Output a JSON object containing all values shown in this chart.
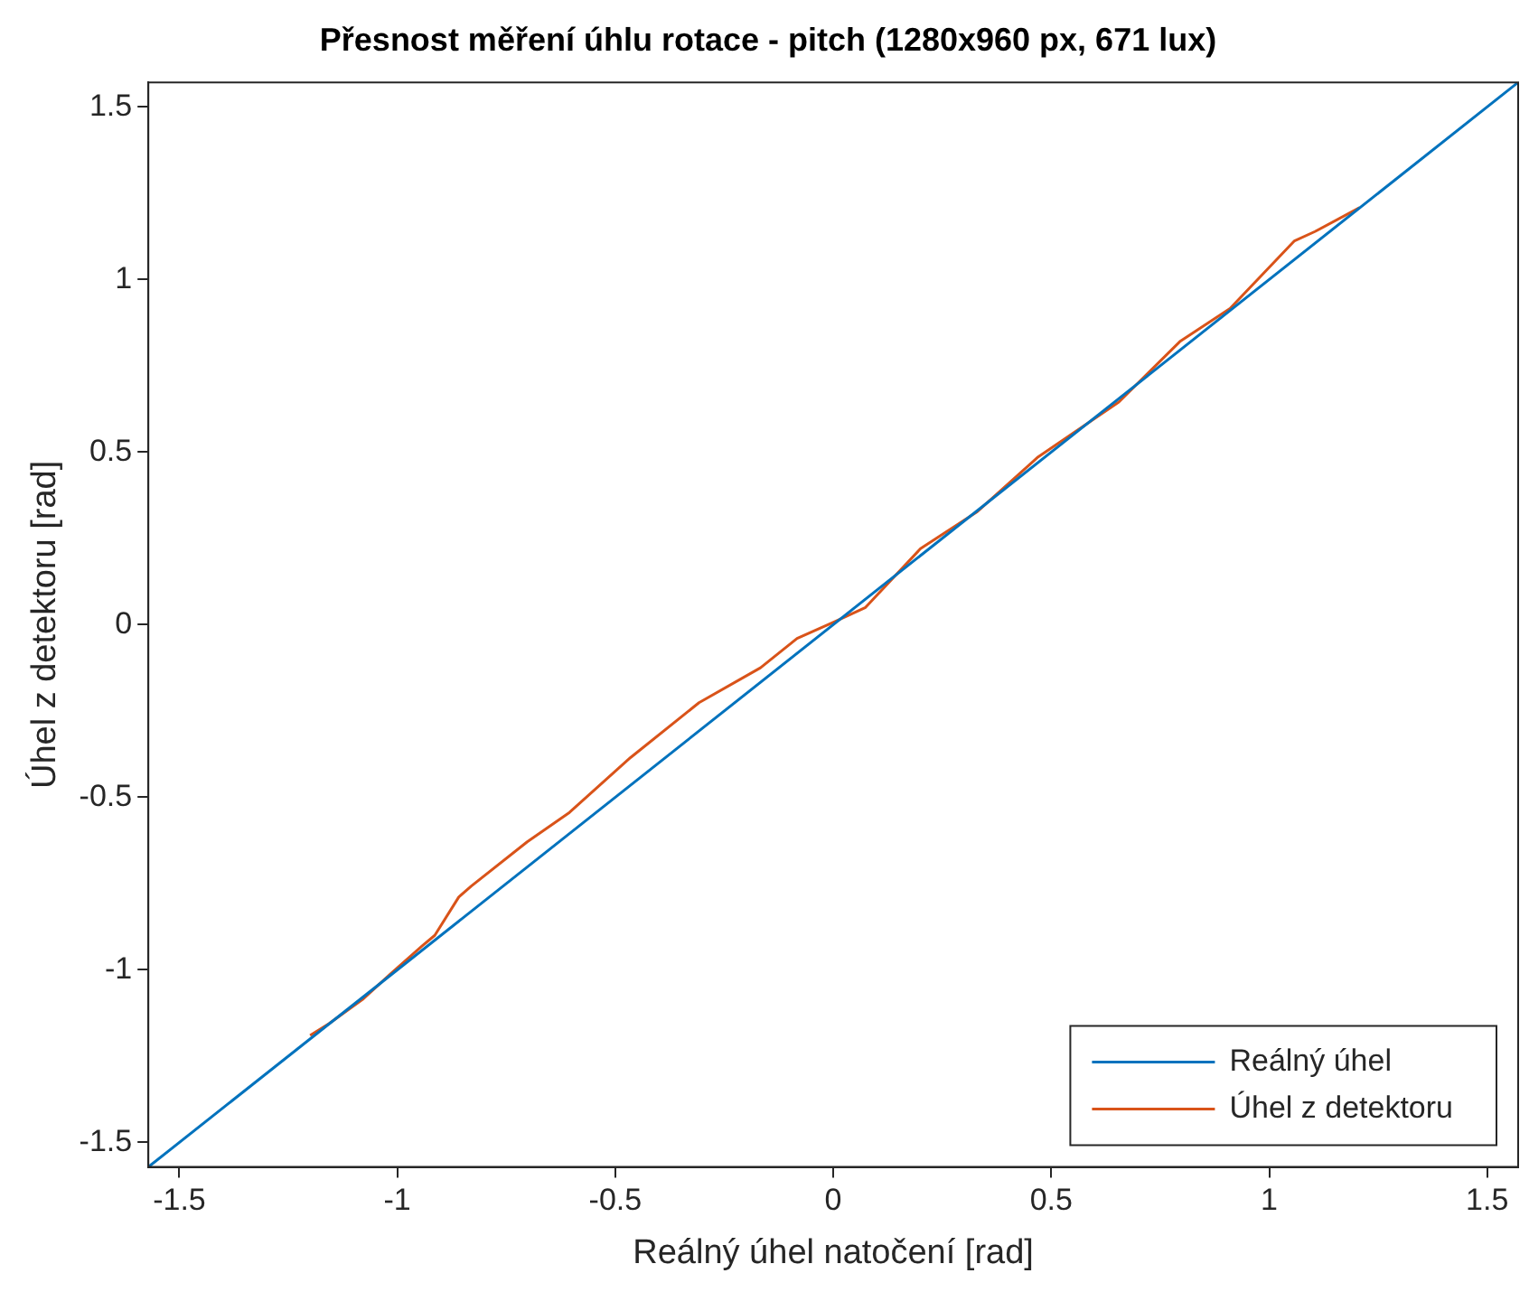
{
  "chart_data": {
    "type": "line",
    "title": "Přesnost měření úhlu rotace - pitch (1280x960 px, 671 lux)",
    "xlabel": "Reálný úhel natočení [rad]",
    "ylabel": "Úhel z detektoru [rad]",
    "series": [
      {
        "name": "Reálný úhel",
        "color": "#0072bd",
        "x": [
          -1.571,
          1.571
        ],
        "values": [
          -1.571,
          1.571
        ]
      },
      {
        "name": "Úhel z detektoru",
        "color": "#d95319",
        "x": [
          -1.2,
          -1.156,
          -1.08,
          -1.016,
          -0.944,
          -0.914,
          -0.859,
          -0.83,
          -0.702,
          -0.605,
          -0.465,
          -0.308,
          -0.167,
          -0.083,
          0.002,
          0.074,
          0.2,
          0.329,
          0.47,
          0.655,
          0.795,
          0.91,
          1.058,
          1.105,
          1.207
        ],
        "values": [
          -1.19,
          -1.155,
          -1.086,
          -1.012,
          -0.932,
          -0.9,
          -0.789,
          -0.757,
          -0.629,
          -0.544,
          -0.385,
          -0.226,
          -0.125,
          -0.04,
          0.008,
          0.05,
          0.22,
          0.326,
          0.486,
          0.645,
          0.82,
          0.916,
          1.112,
          1.139,
          1.208
        ]
      }
    ],
    "xlim": [
      -1.571,
      1.571
    ],
    "ylim": [
      -1.571,
      1.571
    ],
    "xticks": [
      -1.5,
      -1,
      -0.5,
      0,
      0.5,
      1,
      1.5
    ],
    "yticks": [
      -1.5,
      -1,
      -0.5,
      0,
      0.5,
      1,
      1.5
    ],
    "grid": false,
    "legend": "bottom right",
    "marker": "none",
    "line_style": "solid"
  }
}
